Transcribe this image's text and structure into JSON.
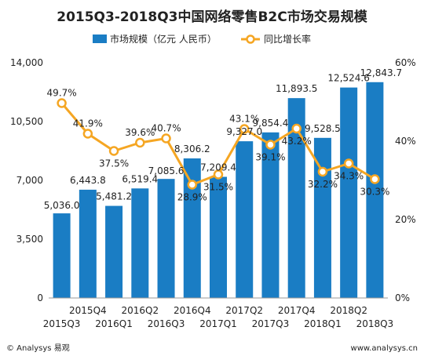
{
  "chart_data": {
    "type": "bar+line",
    "title": "2015Q3-2018Q3中国网络零售B2C市场交易规模",
    "categories": [
      "2015Q3",
      "2015Q4",
      "2016Q1",
      "2016Q2",
      "2016Q3",
      "2016Q4",
      "2017Q1",
      "2017Q2",
      "2017Q3",
      "2017Q4",
      "2018Q1",
      "2018Q2",
      "2018Q3"
    ],
    "series": [
      {
        "name": "市场规模（亿元 人民币）",
        "type": "bar",
        "axis": "left",
        "color": "#1a7dc4",
        "values": [
          5036.0,
          6443.8,
          5481.2,
          6519.4,
          7085.6,
          8306.2,
          7209.4,
          9327.0,
          9854.4,
          11893.5,
          9528.5,
          12524.6,
          12843.7
        ],
        "labels": [
          "5,036.0",
          "6,443.8",
          "5,481.2",
          "6,519.4",
          "7,085.6",
          "8,306.2",
          "7,209.4",
          "9,327.0",
          "9,854.4",
          "11,893.5",
          "9,528.5",
          "12,524.6",
          "12,843.7"
        ]
      },
      {
        "name": "同比增长率",
        "type": "line",
        "axis": "right",
        "color": "#f5a623",
        "values": [
          49.7,
          41.9,
          37.5,
          39.6,
          40.7,
          28.9,
          31.5,
          43.1,
          39.1,
          43.2,
          32.2,
          34.3,
          30.3
        ],
        "labels": [
          "49.7%",
          "41.9%",
          "37.5%",
          "39.6%",
          "40.7%",
          "28.9%",
          "31.5%",
          "43.1%",
          "39.1%",
          "43.2%",
          "32.2%",
          "34.3%",
          "30.3%"
        ]
      }
    ],
    "y_left": {
      "range": [
        0,
        14000
      ],
      "ticks": [
        "0",
        "3,500",
        "7,000",
        "10,500",
        "14,000"
      ],
      "tick_values": [
        0,
        3500,
        7000,
        10500,
        14000
      ]
    },
    "y_right": {
      "range": [
        0,
        60
      ],
      "ticks": [
        "0%",
        "20%",
        "40%",
        "60%"
      ],
      "tick_values": [
        0,
        20,
        40,
        60
      ]
    },
    "grid": false,
    "legend_position": "top"
  },
  "footer": {
    "left": "© Analysys 易观",
    "right": "www.analysys.cn"
  }
}
